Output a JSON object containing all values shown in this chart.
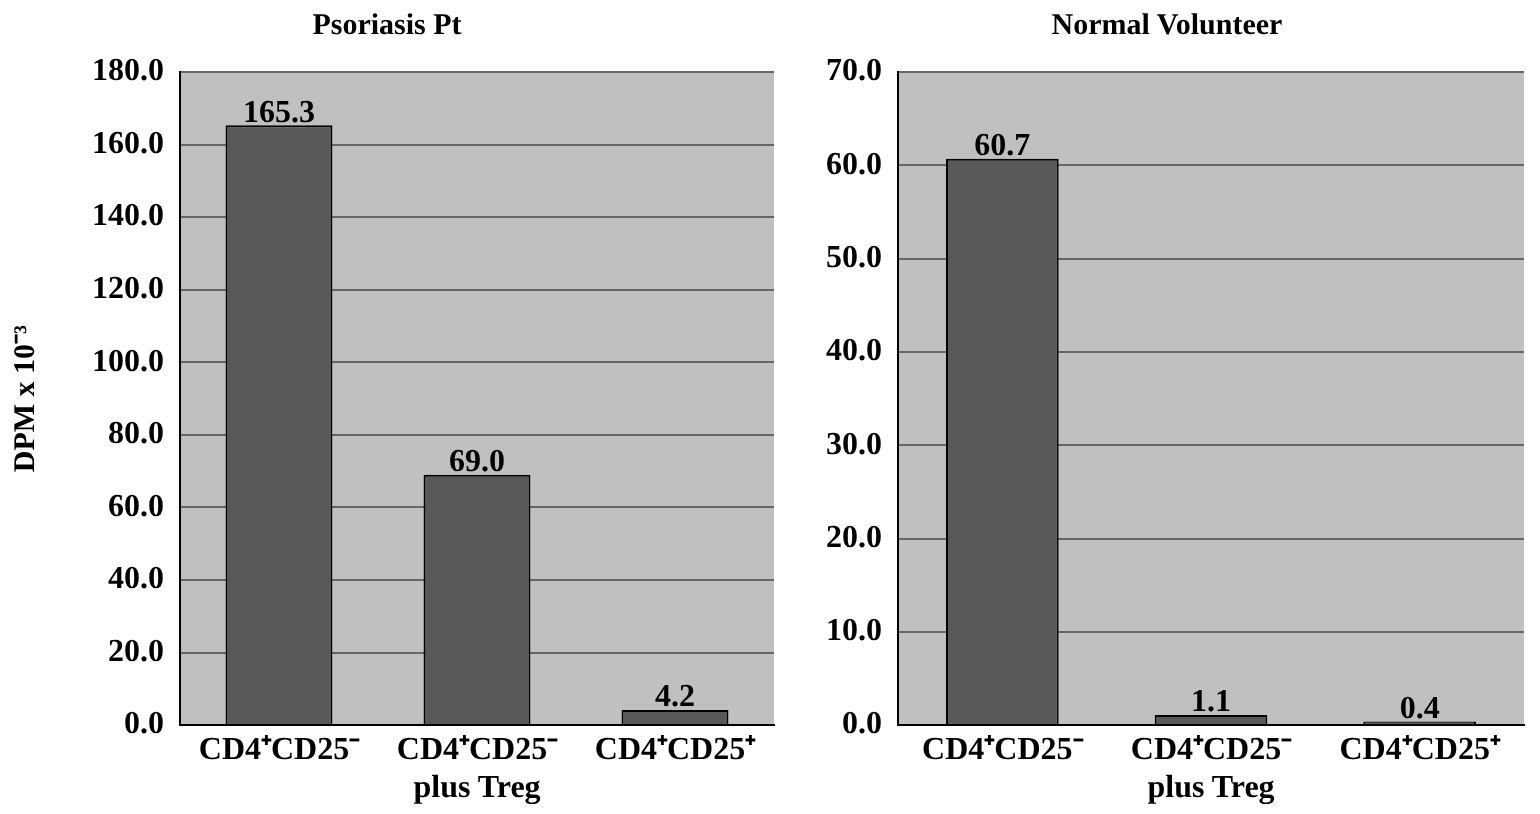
{
  "chart_data": [
    {
      "type": "bar",
      "title": "Psoriasis Pt",
      "ylabel": "DPM x 10⁻³",
      "categories": [
        "CD4⁺CD25⁻",
        "CD4⁺CD25⁻\nplus Treg",
        "CD4⁺CD25⁺"
      ],
      "values": [
        165.3,
        69.0,
        4.2
      ],
      "color": "#595959",
      "ylim": [
        0,
        180
      ],
      "yticks": [
        {
          "value": 0,
          "label": "0.0"
        },
        {
          "value": 20,
          "label": "20.0"
        },
        {
          "value": 40,
          "label": "40.0"
        },
        {
          "value": 60,
          "label": "60.0"
        },
        {
          "value": 80,
          "label": "80.0"
        },
        {
          "value": 100,
          "label": "100.0"
        },
        {
          "value": 120,
          "label": "120.0"
        },
        {
          "value": 140,
          "label": "140.0"
        },
        {
          "value": 160,
          "label": "160.0"
        },
        {
          "value": 180,
          "label": "180.0"
        }
      ],
      "grid": "y",
      "value_labels": [
        "165.3",
        "69.0",
        "4.2"
      ]
    },
    {
      "type": "bar",
      "title": "Normal Volunteer",
      "categories": [
        "CD4⁺CD25⁻",
        "CD4⁺CD25⁻\nplus Treg",
        "CD4⁺CD25⁺"
      ],
      "values": [
        60.7,
        1.1,
        0.4
      ],
      "color": "#595959",
      "ylim": [
        0,
        70
      ],
      "yticks": [
        {
          "value": 0,
          "label": "0.0"
        },
        {
          "value": 10,
          "label": "10.0"
        },
        {
          "value": 20,
          "label": "20.0"
        },
        {
          "value": 30,
          "label": "30.0"
        },
        {
          "value": 40,
          "label": "40.0"
        },
        {
          "value": 50,
          "label": "50.0"
        },
        {
          "value": 60,
          "label": "60.0"
        },
        {
          "value": 70,
          "label": "70.0"
        }
      ],
      "grid": "y",
      "value_labels": [
        "60.7",
        "1.1",
        "0.4"
      ]
    }
  ]
}
